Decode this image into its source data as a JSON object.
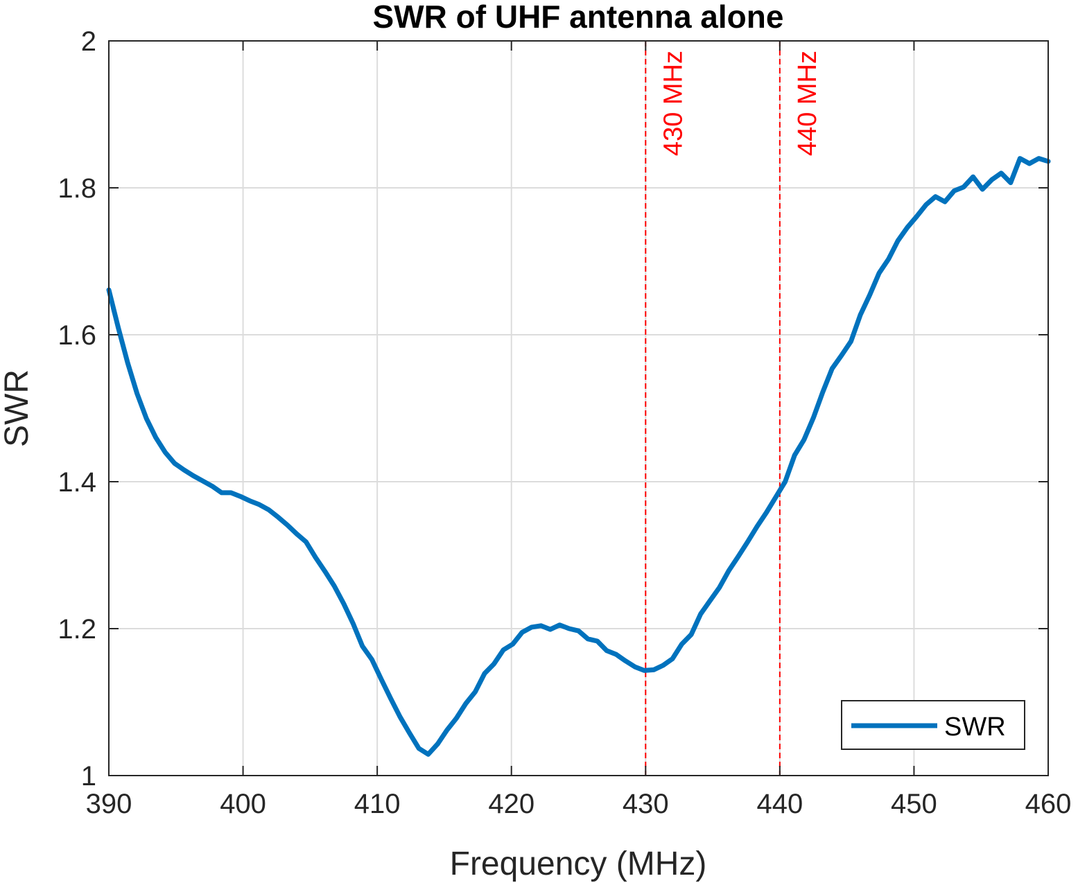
{
  "chart_data": {
    "type": "line",
    "title": "SWR of UHF antenna alone",
    "xlabel": "Frequency (MHz)",
    "ylabel": "SWR",
    "xlim": [
      390,
      460
    ],
    "ylim": [
      1,
      2
    ],
    "xticks": [
      390,
      400,
      410,
      420,
      430,
      440,
      450,
      460
    ],
    "yticks": [
      1,
      1.2,
      1.4,
      1.6,
      1.8,
      2
    ],
    "ytick_labels": [
      "1",
      "1.2",
      "1.4",
      "1.6",
      "1.8",
      "2"
    ],
    "grid": true,
    "legend_position": "bottom-right",
    "series": [
      {
        "name": "SWR",
        "color": "#0072bd",
        "x": [
          390,
          390.7,
          391.4,
          392.1,
          392.8,
          393.5,
          394.2,
          394.9,
          395.6,
          396.3,
          397.0,
          397.7,
          398.4,
          399.1,
          399.8,
          400.5,
          401.2,
          401.9,
          402.6,
          403.3,
          404.0,
          404.7,
          405.4,
          406.1,
          406.8,
          407.5,
          408.2,
          408.9,
          409.6,
          410.3,
          411.0,
          411.7,
          412.4,
          413.1,
          413.8,
          414.5,
          415.2,
          415.9,
          416.6,
          417.3,
          418.0,
          418.7,
          419.4,
          420.1,
          420.8,
          421.5,
          422.2,
          422.9,
          423.6,
          424.3,
          425.0,
          425.7,
          426.4,
          427.1,
          427.8,
          428.5,
          429.2,
          429.9,
          430.6,
          431.3,
          432.0,
          432.7,
          433.4,
          434.1,
          434.8,
          435.5,
          436.2,
          436.9,
          437.6,
          438.3,
          439.0,
          439.7,
          440.4,
          441.1,
          441.8,
          442.5,
          443.2,
          443.9,
          444.6,
          445.3,
          446.0,
          446.7,
          447.4,
          448.1,
          448.8,
          449.5,
          450.2,
          450.9,
          451.6,
          452.3,
          453.0,
          453.7,
          454.4,
          455.1,
          455.8,
          456.5,
          457.2,
          457.9,
          458.6,
          459.3,
          460.0
        ],
        "y": [
          1.661,
          1.61,
          1.562,
          1.52,
          1.486,
          1.46,
          1.44,
          1.425,
          1.416,
          1.408,
          1.401,
          1.394,
          1.385,
          1.385,
          1.38,
          1.374,
          1.369,
          1.362,
          1.352,
          1.341,
          1.329,
          1.318,
          1.297,
          1.278,
          1.258,
          1.234,
          1.207,
          1.176,
          1.158,
          1.131,
          1.105,
          1.08,
          1.058,
          1.037,
          1.029,
          1.043,
          1.062,
          1.078,
          1.098,
          1.114,
          1.139,
          1.152,
          1.171,
          1.179,
          1.195,
          1.202,
          1.204,
          1.199,
          1.205,
          1.2,
          1.197,
          1.186,
          1.183,
          1.17,
          1.165,
          1.156,
          1.148,
          1.143,
          1.144,
          1.15,
          1.159,
          1.179,
          1.192,
          1.22,
          1.238,
          1.256,
          1.279,
          1.298,
          1.318,
          1.339,
          1.358,
          1.379,
          1.4,
          1.436,
          1.457,
          1.487,
          1.522,
          1.554,
          1.572,
          1.591,
          1.627,
          1.654,
          1.684,
          1.703,
          1.728,
          1.746,
          1.761,
          1.777,
          1.788,
          1.781,
          1.796,
          1.801,
          1.815,
          1.798,
          1.811,
          1.82,
          1.807,
          1.84,
          1.833,
          1.84,
          1.836
        ]
      }
    ],
    "annotations": [
      {
        "x": 430,
        "label": "430 MHz",
        "color": "#ff0000",
        "style": "dashed"
      },
      {
        "x": 440,
        "label": "440 MHz",
        "color": "#ff0000",
        "style": "dashed"
      }
    ]
  }
}
